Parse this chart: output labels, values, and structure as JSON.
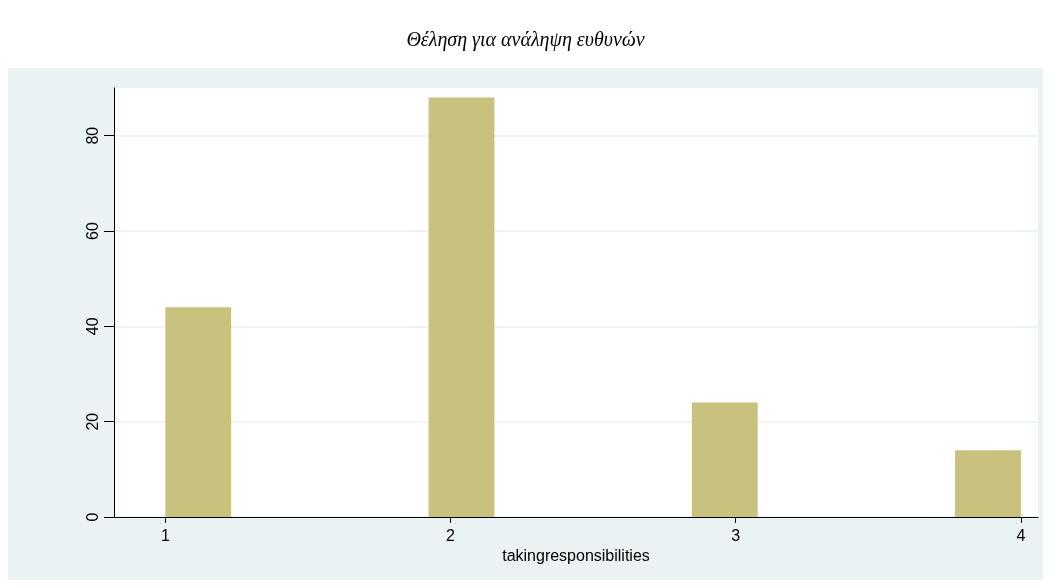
{
  "chart_data": {
    "type": "histogram",
    "title": "Θέληση για ανάληψη ευθυνών",
    "xlabel": "takingresponsibilities",
    "bins": [
      1,
      1.2308,
      1.4615,
      1.6923,
      1.9231,
      2.1538,
      2.3846,
      2.6154,
      2.8462,
      3.0769,
      3.3077,
      3.5385,
      3.7692,
      4
    ],
    "values": [
      44,
      0,
      0,
      0,
      88,
      0,
      0,
      0,
      24,
      0,
      0,
      0,
      14
    ],
    "color": "#c9c27f",
    "xlim": [
      0.82,
      4.06
    ],
    "xticks": [
      1,
      2,
      3,
      4
    ],
    "ylim": [
      0,
      90
    ],
    "yticks": [
      0,
      20,
      40,
      60,
      80
    ],
    "grid": "y"
  }
}
